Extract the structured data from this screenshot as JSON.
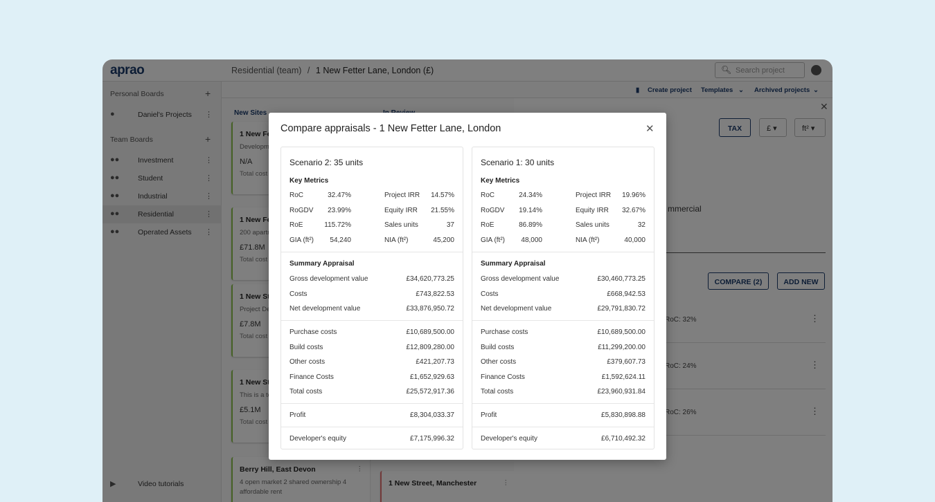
{
  "header": {
    "logo": "aprao",
    "breadcrumb_team": "Residential (team)",
    "breadcrumb_sep": "/",
    "breadcrumb_project": "1 New Fetter Lane, London (£)",
    "search_placeholder": "Search project"
  },
  "sidebar": {
    "personal_title": "Personal Boards",
    "personal_items": [
      {
        "label": "Daniel's Projects"
      }
    ],
    "team_title": "Team Boards",
    "team_items": [
      {
        "label": "Investment"
      },
      {
        "label": "Student"
      },
      {
        "label": "Industrial"
      },
      {
        "label": "Residential",
        "active": true
      },
      {
        "label": "Operated Assets"
      }
    ],
    "video": "Video tutorials"
  },
  "toolbar": {
    "create": "Create project",
    "templates": "Templates",
    "archived": "Archived projects"
  },
  "columns": [
    {
      "title": "New Sites"
    },
    {
      "title": "In Review"
    }
  ],
  "cards": [
    {
      "title": "1 New Fe",
      "desc": "Developm commerci",
      "value": "N/A",
      "cost": "Total cost"
    },
    {
      "title": "1 New Fe",
      "desc": "200 apartr",
      "value": "£71.8M",
      "cost": "Total cost"
    },
    {
      "title": "1 New Str",
      "desc": "Project De existing bu",
      "value": "£7.8M",
      "cost": "Total cost"
    },
    {
      "title": "1 New Str",
      "desc": "This is a te developme",
      "value": "£5.1M",
      "cost": "Total cost"
    },
    {
      "title": "Berry Hill, East Devon",
      "desc": "4 open market 2 shared ownership 4 affordable rent"
    },
    {
      "title": "1 New Street, Manchester"
    }
  ],
  "right_panel": {
    "tax": "TAX",
    "currency": "£",
    "unit": "ft²",
    "partial_text": "mmercial",
    "compare": "COMPARE (2)",
    "add_new": "ADD NEW",
    "rows": [
      "RoC: 32%",
      "RoC: 24%",
      "RoC: 26%"
    ]
  },
  "modal": {
    "title": "Compare appraisals - 1 New Fetter Lane, London",
    "key_metrics_title": "Key Metrics",
    "summary_title": "Summary Appraisal",
    "scenarios": [
      {
        "name": "Scenario 2: 35 units",
        "metrics": [
          [
            "RoC",
            "32.47%",
            "Project IRR",
            "14.57%"
          ],
          [
            "RoGDV",
            "23.99%",
            "Equity IRR",
            "21.55%"
          ],
          [
            "RoE",
            "115.72%",
            "Sales units",
            "37"
          ],
          [
            "GIA (ft²)",
            "54,240",
            "NIA (ft²)",
            "45,200"
          ]
        ],
        "summary": [
          [
            "Gross development value",
            "£34,620,773.25"
          ],
          [
            "Costs",
            "£743,822.53"
          ],
          [
            "Net development value",
            "£33,876,950.72"
          ]
        ],
        "costs": [
          [
            "Purchase costs",
            "£10,689,500.00"
          ],
          [
            "Build costs",
            "£12,809,280.00"
          ],
          [
            "Other costs",
            "£421,207.73"
          ],
          [
            "Finance Costs",
            "£1,652,929.63"
          ],
          [
            "Total costs",
            "£25,572,917.36"
          ]
        ],
        "profit": [
          "Profit",
          "£8,304,033.37"
        ],
        "equity": [
          "Developer's equity",
          "£7,175,996.32"
        ]
      },
      {
        "name": "Scenario 1: 30 units",
        "metrics": [
          [
            "RoC",
            "24.34%",
            "Project IRR",
            "19.96%"
          ],
          [
            "RoGDV",
            "19.14%",
            "Equity IRR",
            "32.67%"
          ],
          [
            "RoE",
            "86.89%",
            "Sales units",
            "32"
          ],
          [
            "GIA (ft²)",
            "48,000",
            "NIA (ft²)",
            "40,000"
          ]
        ],
        "summary": [
          [
            "Gross development value",
            "£30,460,773.25"
          ],
          [
            "Costs",
            "£668,942.53"
          ],
          [
            "Net development value",
            "£29,791,830.72"
          ]
        ],
        "costs": [
          [
            "Purchase costs",
            "£10,689,500.00"
          ],
          [
            "Build costs",
            "£11,299,200.00"
          ],
          [
            "Other costs",
            "£379,607.73"
          ],
          [
            "Finance Costs",
            "£1,592,624.11"
          ],
          [
            "Total costs",
            "£23,960,931.84"
          ]
        ],
        "profit": [
          "Profit",
          "£5,830,898.88"
        ],
        "equity": [
          "Developer's equity",
          "£6,710,492.32"
        ]
      }
    ]
  }
}
